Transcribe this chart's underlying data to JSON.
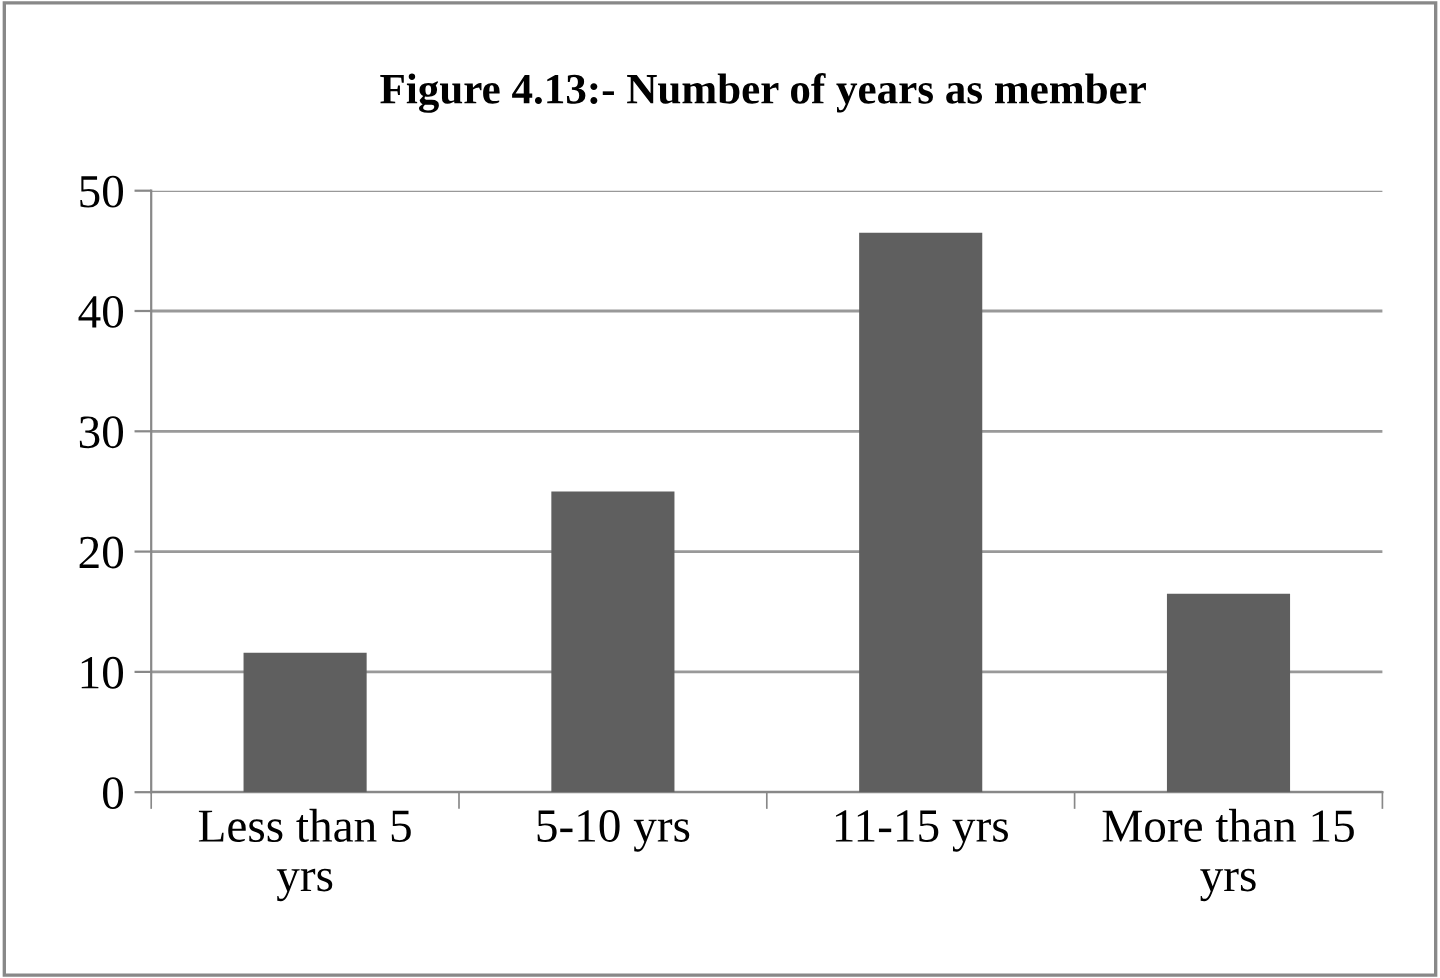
{
  "chart_data": {
    "type": "bar",
    "title": "Figure 4.13:- Number of years as member",
    "categories": [
      "Less than 5\nyrs",
      "5-10 yrs",
      "11-15 yrs",
      "More than 15\nyrs"
    ],
    "values": [
      11.6,
      25,
      46.5,
      16.5
    ],
    "color": "#5f5f5f",
    "ylim": [
      0,
      50
    ],
    "yticks": [
      0,
      10,
      20,
      30,
      40,
      50
    ],
    "grid": "y"
  }
}
